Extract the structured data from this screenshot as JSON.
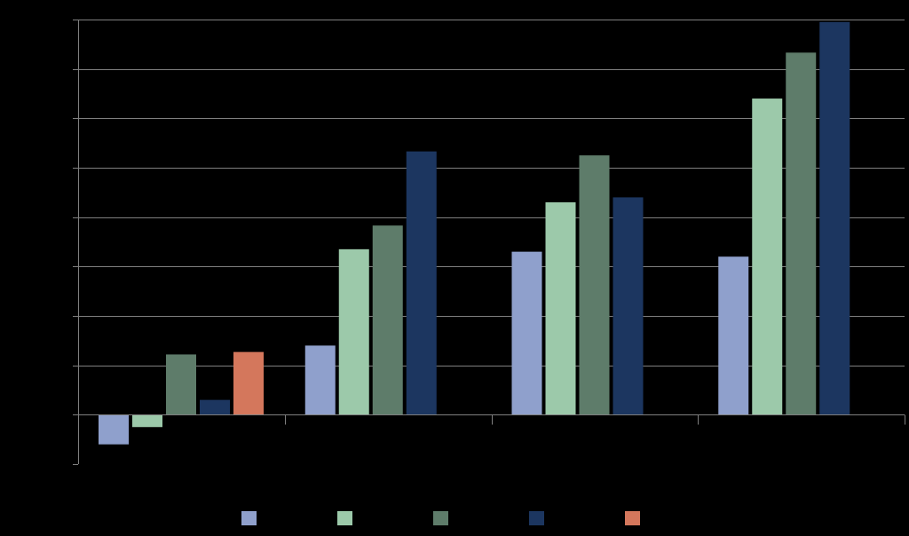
{
  "chart_data": {
    "type": "bar",
    "title": "",
    "xlabel": "",
    "ylabel": "",
    "categories": [
      "",
      "",
      "",
      ""
    ],
    "ylim": [
      -1,
      8
    ],
    "y_tick_step": 1,
    "grid": true,
    "legend_position": "bottom",
    "series": [
      {
        "color": "#8fa0cc",
        "values": [
          -0.6,
          1.4,
          3.3,
          3.2
        ]
      },
      {
        "color": "#9cc9aa",
        "values": [
          -0.25,
          3.35,
          4.3,
          6.4
        ]
      },
      {
        "color": "#5e7c6a",
        "values": [
          1.22,
          3.83,
          5.25,
          7.33
        ]
      },
      {
        "color": "#1c3660",
        "values": [
          0.3,
          5.33,
          4.4,
          7.95
        ]
      },
      {
        "color": "#d4775c",
        "values": [
          1.27,
          null,
          null,
          null
        ]
      }
    ],
    "axis_color": "#7f7f7f",
    "grid_color": "#7f7f7f"
  }
}
